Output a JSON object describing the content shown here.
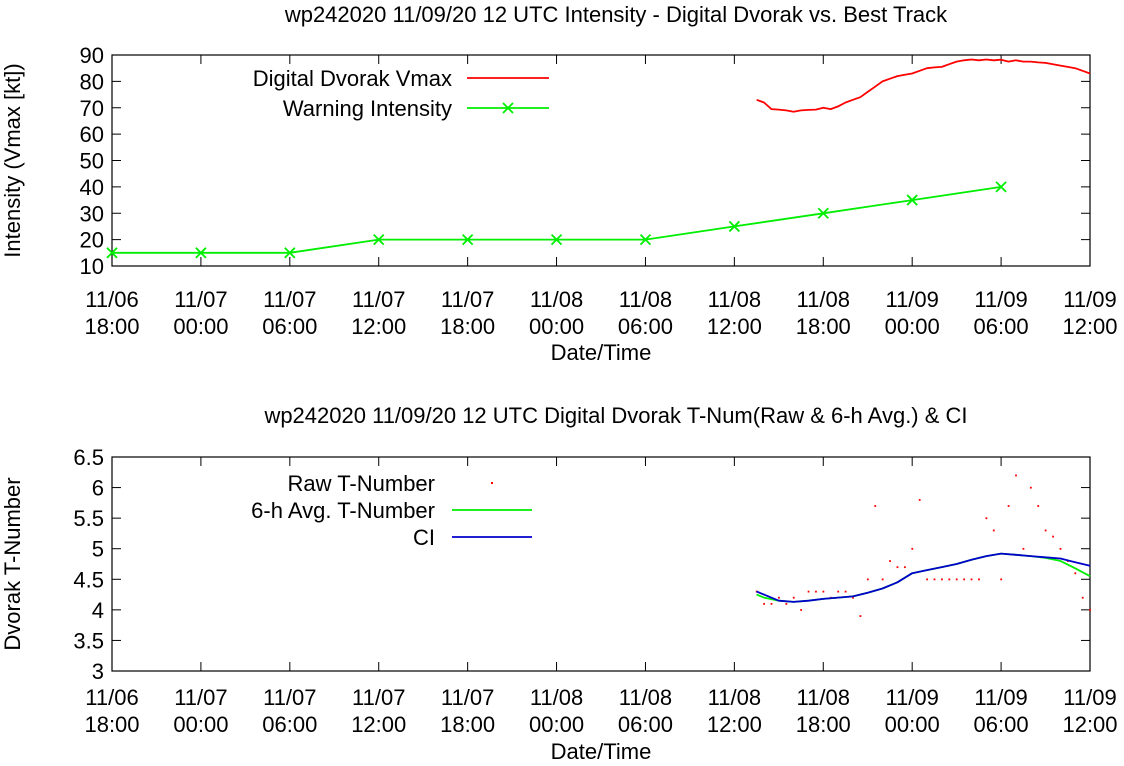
{
  "colors": {
    "vmax": "#ff0000",
    "warning": "#00ee00",
    "raw": "#ff0000",
    "avg": "#00ee00",
    "ci": "#0000cc"
  },
  "chart_data": [
    {
      "type": "line",
      "title": "wp242020 11/09/20  12 UTC Intensity - Digital Dvorak vs. Best Track",
      "xlabel": "Date/Time",
      "ylabel": "Intensity (Vmax [kt])",
      "xlim": [
        "2020-11-06 18:00",
        "2020-11-09 12:00"
      ],
      "ylim": [
        10,
        90
      ],
      "yticks": [
        10,
        20,
        30,
        40,
        50,
        60,
        70,
        80,
        90
      ],
      "xticks": [
        {
          "date": "11/06",
          "time": "18:00"
        },
        {
          "date": "11/07",
          "time": "00:00"
        },
        {
          "date": "11/07",
          "time": "06:00"
        },
        {
          "date": "11/07",
          "time": "12:00"
        },
        {
          "date": "11/07",
          "time": "18:00"
        },
        {
          "date": "11/08",
          "time": "00:00"
        },
        {
          "date": "11/08",
          "time": "06:00"
        },
        {
          "date": "11/08",
          "time": "12:00"
        },
        {
          "date": "11/08",
          "time": "18:00"
        },
        {
          "date": "11/09",
          "time": "00:00"
        },
        {
          "date": "11/09",
          "time": "06:00"
        },
        {
          "date": "11/09",
          "time": "12:00"
        }
      ],
      "legend_position": "top-left",
      "series": [
        {
          "name": "Digital Dvorak Vmax",
          "color": "#ff0000",
          "marker": "none",
          "points": [
            [
              "2020-11-08 13:30",
              73
            ],
            [
              "2020-11-08 14:00",
              72
            ],
            [
              "2020-11-08 14:30",
              69.5
            ],
            [
              "2020-11-08 15:00",
              69.3
            ],
            [
              "2020-11-08 15:30",
              69
            ],
            [
              "2020-11-08 16:00",
              68.5
            ],
            [
              "2020-11-08 16:30",
              69
            ],
            [
              "2020-11-08 17:00",
              69.2
            ],
            [
              "2020-11-08 17:30",
              69.3
            ],
            [
              "2020-11-08 18:00",
              70
            ],
            [
              "2020-11-08 18:30",
              69.5
            ],
            [
              "2020-11-08 19:00",
              70.5
            ],
            [
              "2020-11-08 19:30",
              72
            ],
            [
              "2020-11-08 20:00",
              73
            ],
            [
              "2020-11-08 20:30",
              74
            ],
            [
              "2020-11-08 21:00",
              76
            ],
            [
              "2020-11-08 21:30",
              78
            ],
            [
              "2020-11-08 22:00",
              80
            ],
            [
              "2020-11-08 22:30",
              81
            ],
            [
              "2020-11-08 23:00",
              82
            ],
            [
              "2020-11-08 23:30",
              82.5
            ],
            [
              "2020-11-09 00:00",
              83
            ],
            [
              "2020-11-09 00:30",
              84
            ],
            [
              "2020-11-09 01:00",
              85
            ],
            [
              "2020-11-09 01:30",
              85.3
            ],
            [
              "2020-11-09 02:00",
              85.5
            ],
            [
              "2020-11-09 02:30",
              86.5
            ],
            [
              "2020-11-09 03:00",
              87.5
            ],
            [
              "2020-11-09 03:30",
              88
            ],
            [
              "2020-11-09 04:00",
              88.3
            ],
            [
              "2020-11-09 04:30",
              88
            ],
            [
              "2020-11-09 05:00",
              88.3
            ],
            [
              "2020-11-09 05:30",
              88
            ],
            [
              "2020-11-09 06:00",
              88.2
            ],
            [
              "2020-11-09 06:30",
              87.5
            ],
            [
              "2020-11-09 07:00",
              88
            ],
            [
              "2020-11-09 07:30",
              87.5
            ],
            [
              "2020-11-09 08:00",
              87.5
            ],
            [
              "2020-11-09 08:30",
              87.2
            ],
            [
              "2020-11-09 09:00",
              87
            ],
            [
              "2020-11-09 09:30",
              86.5
            ],
            [
              "2020-11-09 10:00",
              86
            ],
            [
              "2020-11-09 10:30",
              85.5
            ],
            [
              "2020-11-09 11:00",
              85
            ],
            [
              "2020-11-09 11:30",
              84
            ],
            [
              "2020-11-09 12:00",
              83
            ]
          ]
        },
        {
          "name": "Warning Intensity",
          "color": "#00ee00",
          "marker": "x",
          "points": [
            [
              "2020-11-06 18:00",
              15
            ],
            [
              "2020-11-07 00:00",
              15
            ],
            [
              "2020-11-07 06:00",
              15
            ],
            [
              "2020-11-07 12:00",
              20
            ],
            [
              "2020-11-07 18:00",
              20
            ],
            [
              "2020-11-08 00:00",
              20
            ],
            [
              "2020-11-08 06:00",
              20
            ],
            [
              "2020-11-08 12:00",
              25
            ],
            [
              "2020-11-08 18:00",
              30
            ],
            [
              "2020-11-09 00:00",
              35
            ],
            [
              "2020-11-09 06:00",
              40
            ]
          ]
        }
      ]
    },
    {
      "type": "line",
      "title": "wp242020 11/09/20  12 UTC Digital Dvorak T-Num(Raw & 6-h Avg.) & CI",
      "xlabel": "Date/Time",
      "ylabel": "Dvorak T-Number",
      "xlim": [
        "2020-11-06 18:00",
        "2020-11-09 12:00"
      ],
      "ylim": [
        3,
        6.5
      ],
      "yticks": [
        3,
        3.5,
        4,
        4.5,
        5,
        5.5,
        6,
        6.5
      ],
      "xticks": [
        {
          "date": "11/06",
          "time": "18:00"
        },
        {
          "date": "11/07",
          "time": "00:00"
        },
        {
          "date": "11/07",
          "time": "06:00"
        },
        {
          "date": "11/07",
          "time": "12:00"
        },
        {
          "date": "11/07",
          "time": "18:00"
        },
        {
          "date": "11/08",
          "time": "00:00"
        },
        {
          "date": "11/08",
          "time": "06:00"
        },
        {
          "date": "11/08",
          "time": "12:00"
        },
        {
          "date": "11/08",
          "time": "18:00"
        },
        {
          "date": "11/09",
          "time": "00:00"
        },
        {
          "date": "11/09",
          "time": "06:00"
        },
        {
          "date": "11/09",
          "time": "12:00"
        }
      ],
      "legend_position": "top-left",
      "series": [
        {
          "name": "Raw T-Number",
          "color": "#ff0000",
          "marker": "dot",
          "points": [
            [
              "2020-11-08 13:30",
              4.3
            ],
            [
              "2020-11-08 14:00",
              4.1
            ],
            [
              "2020-11-08 14:30",
              4.1
            ],
            [
              "2020-11-08 15:00",
              4.2
            ],
            [
              "2020-11-08 15:30",
              4.1
            ],
            [
              "2020-11-08 16:00",
              4.2
            ],
            [
              "2020-11-08 16:30",
              4.0
            ],
            [
              "2020-11-08 17:00",
              4.3
            ],
            [
              "2020-11-08 17:30",
              4.3
            ],
            [
              "2020-11-08 18:00",
              4.3
            ],
            [
              "2020-11-08 18:30",
              4.2
            ],
            [
              "2020-11-08 19:00",
              4.3
            ],
            [
              "2020-11-08 19:30",
              4.3
            ],
            [
              "2020-11-08 20:00",
              4.2
            ],
            [
              "2020-11-08 20:30",
              3.9
            ],
            [
              "2020-11-08 21:00",
              4.5
            ],
            [
              "2020-11-08 21:30",
              5.7
            ],
            [
              "2020-11-08 22:00",
              4.5
            ],
            [
              "2020-11-08 22:30",
              4.8
            ],
            [
              "2020-11-08 23:00",
              4.7
            ],
            [
              "2020-11-08 23:30",
              4.7
            ],
            [
              "2020-11-09 00:00",
              5.0
            ],
            [
              "2020-11-09 00:30",
              5.8
            ],
            [
              "2020-11-09 01:00",
              4.5
            ],
            [
              "2020-11-09 01:30",
              4.5
            ],
            [
              "2020-11-09 02:00",
              4.5
            ],
            [
              "2020-11-09 02:30",
              4.5
            ],
            [
              "2020-11-09 03:00",
              4.5
            ],
            [
              "2020-11-09 03:30",
              4.5
            ],
            [
              "2020-11-09 04:00",
              4.5
            ],
            [
              "2020-11-09 04:30",
              4.5
            ],
            [
              "2020-11-09 05:00",
              5.5
            ],
            [
              "2020-11-09 05:30",
              5.3
            ],
            [
              "2020-11-09 06:00",
              4.5
            ],
            [
              "2020-11-09 06:30",
              5.7
            ],
            [
              "2020-11-09 07:00",
              6.2
            ],
            [
              "2020-11-09 07:30",
              5.0
            ],
            [
              "2020-11-09 08:00",
              6.0
            ],
            [
              "2020-11-09 08:30",
              5.7
            ],
            [
              "2020-11-09 09:00",
              5.3
            ],
            [
              "2020-11-09 09:30",
              5.2
            ],
            [
              "2020-11-09 10:00",
              5.0
            ],
            [
              "2020-11-09 10:30",
              4.8
            ],
            [
              "2020-11-09 11:00",
              4.6
            ],
            [
              "2020-11-09 11:30",
              4.2
            ],
            [
              "2020-11-09 12:00",
              4.0
            ]
          ]
        },
        {
          "name": "6-h Avg. T-Number",
          "color": "#00ee00",
          "marker": "none",
          "points": [
            [
              "2020-11-08 13:30",
              4.25
            ],
            [
              "2020-11-08 14:00",
              4.2
            ],
            [
              "2020-11-08 15:00",
              4.15
            ],
            [
              "2020-11-08 16:00",
              4.13
            ],
            [
              "2020-11-08 17:00",
              4.15
            ],
            [
              "2020-11-08 18:00",
              4.18
            ],
            [
              "2020-11-08 19:00",
              4.2
            ],
            [
              "2020-11-08 20:00",
              4.22
            ],
            [
              "2020-11-08 21:00",
              4.28
            ],
            [
              "2020-11-08 22:00",
              4.35
            ],
            [
              "2020-11-08 23:00",
              4.45
            ],
            [
              "2020-11-09 00:00",
              4.6
            ],
            [
              "2020-11-09 01:00",
              4.65
            ],
            [
              "2020-11-09 02:00",
              4.7
            ],
            [
              "2020-11-09 03:00",
              4.75
            ],
            [
              "2020-11-09 04:00",
              4.82
            ],
            [
              "2020-11-09 05:00",
              4.88
            ],
            [
              "2020-11-09 06:00",
              4.92
            ],
            [
              "2020-11-09 07:00",
              4.9
            ],
            [
              "2020-11-09 08:00",
              4.88
            ],
            [
              "2020-11-09 09:00",
              4.85
            ],
            [
              "2020-11-09 10:00",
              4.8
            ],
            [
              "2020-11-09 11:00",
              4.68
            ],
            [
              "2020-11-09 12:00",
              4.55
            ]
          ]
        },
        {
          "name": "CI",
          "color": "#0000cc",
          "marker": "none",
          "points": [
            [
              "2020-11-08 13:30",
              4.3
            ],
            [
              "2020-11-08 14:00",
              4.25
            ],
            [
              "2020-11-08 15:00",
              4.15
            ],
            [
              "2020-11-08 16:00",
              4.13
            ],
            [
              "2020-11-08 17:00",
              4.15
            ],
            [
              "2020-11-08 18:00",
              4.18
            ],
            [
              "2020-11-08 19:00",
              4.2
            ],
            [
              "2020-11-08 20:00",
              4.22
            ],
            [
              "2020-11-08 21:00",
              4.28
            ],
            [
              "2020-11-08 22:00",
              4.35
            ],
            [
              "2020-11-08 23:00",
              4.45
            ],
            [
              "2020-11-09 00:00",
              4.6
            ],
            [
              "2020-11-09 01:00",
              4.65
            ],
            [
              "2020-11-09 02:00",
              4.7
            ],
            [
              "2020-11-09 03:00",
              4.75
            ],
            [
              "2020-11-09 04:00",
              4.82
            ],
            [
              "2020-11-09 05:00",
              4.88
            ],
            [
              "2020-11-09 06:00",
              4.92
            ],
            [
              "2020-11-09 07:00",
              4.9
            ],
            [
              "2020-11-09 08:00",
              4.88
            ],
            [
              "2020-11-09 09:00",
              4.86
            ],
            [
              "2020-11-09 10:00",
              4.84
            ],
            [
              "2020-11-09 11:00",
              4.78
            ],
            [
              "2020-11-09 12:00",
              4.72
            ]
          ]
        }
      ]
    }
  ]
}
